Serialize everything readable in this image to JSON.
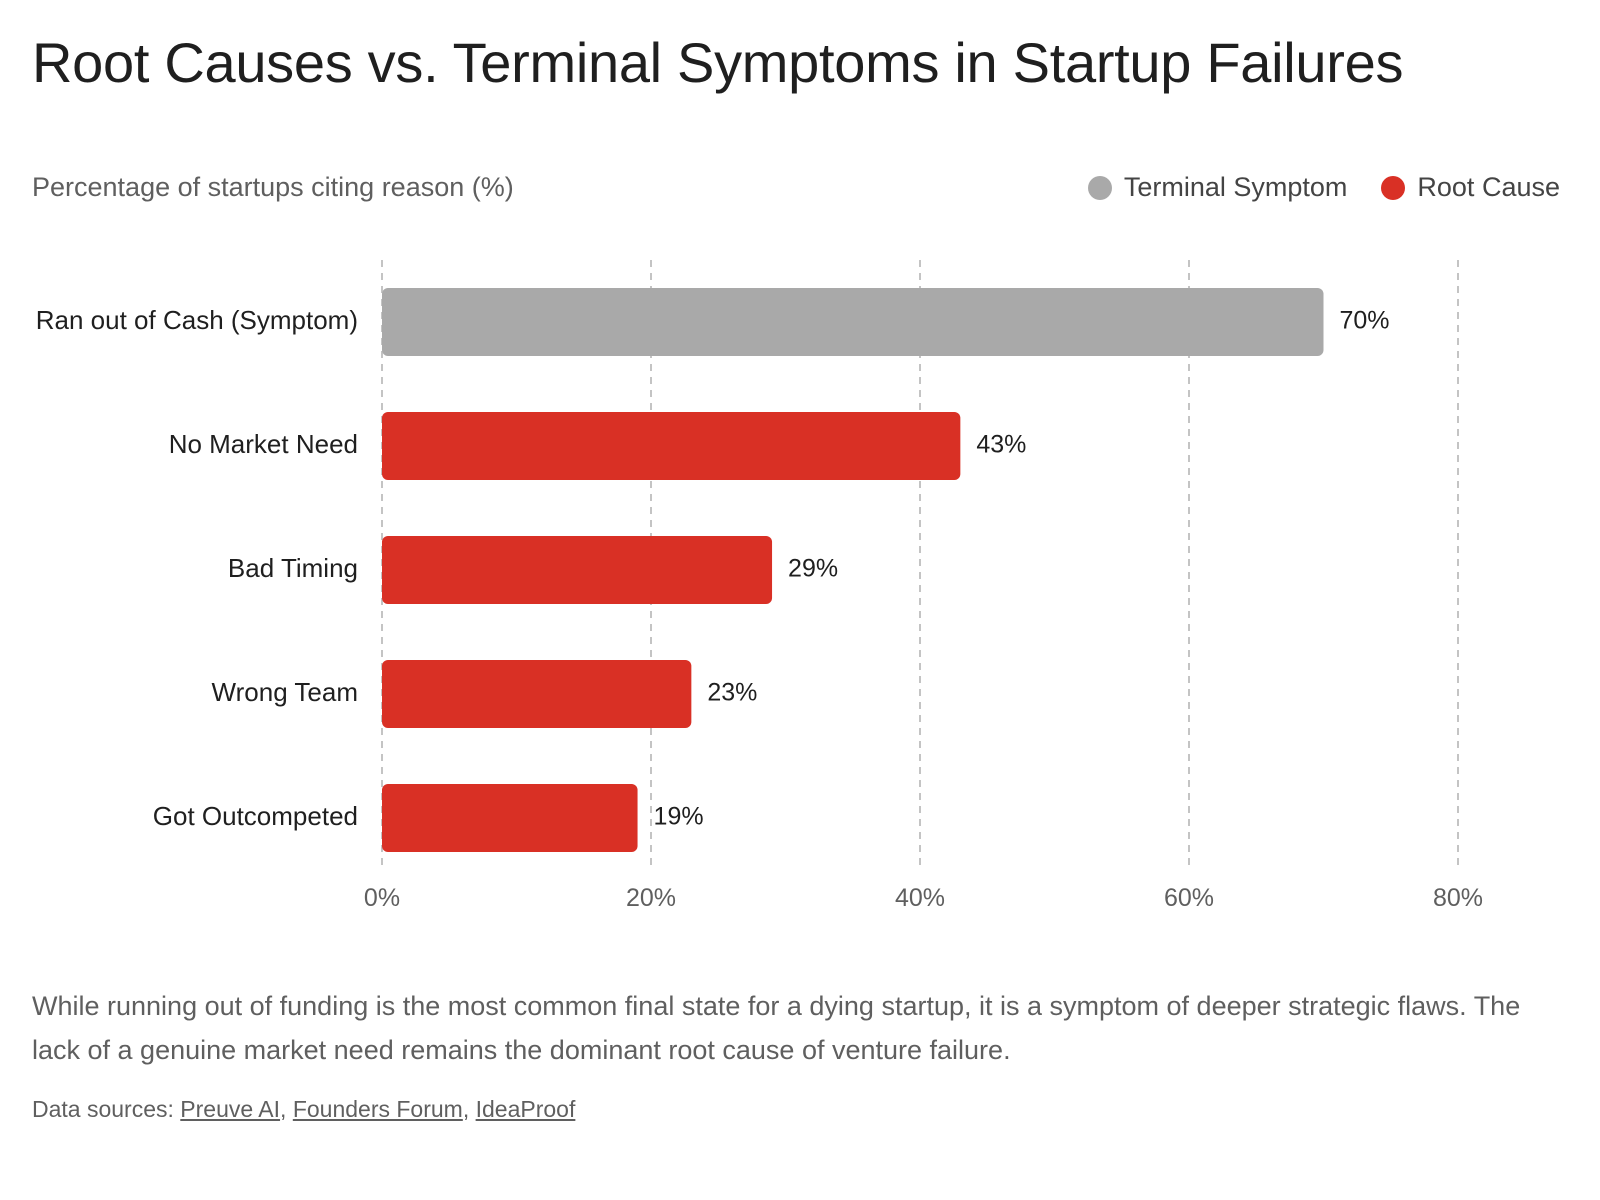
{
  "header": {
    "title": "Root Causes vs. Terminal Symptoms in Startup Failures",
    "subtitle": "Percentage of startups citing reason (%)"
  },
  "legend": {
    "items": [
      {
        "label": "Terminal Symptom",
        "color": "#a9a9a9"
      },
      {
        "label": "Root Cause",
        "color": "#d93025"
      }
    ]
  },
  "chart_data": {
    "type": "bar",
    "orientation": "horizontal",
    "categories": [
      "Ran out of Cash (Symptom)",
      "No Market Need",
      "Bad Timing",
      "Wrong Team",
      "Got Outcompeted"
    ],
    "values": [
      70,
      43,
      29,
      23,
      19
    ],
    "value_labels": [
      "70%",
      "43%",
      "29%",
      "23%",
      "19%"
    ],
    "category_types": [
      "Terminal Symptom",
      "Root Cause",
      "Root Cause",
      "Root Cause",
      "Root Cause"
    ],
    "colors": [
      "#a9a9a9",
      "#d93025",
      "#d93025",
      "#d93025",
      "#d93025"
    ],
    "xlim": [
      0,
      80
    ],
    "xticks": [
      0,
      20,
      40,
      60,
      80
    ],
    "xtick_labels": [
      "0%",
      "20%",
      "40%",
      "60%",
      "80%"
    ],
    "grid": "vertical-dashed",
    "legend_position": "top-right"
  },
  "footer": {
    "description": "While running out of funding is the most common final state for a dying startup, it is a symptom of deeper strategic flaws. The lack of a genuine market need remains the dominant root cause of venture failure.",
    "sources_prefix": "Data sources:",
    "sources": [
      "Preuve AI",
      "Founders Forum",
      "IdeaProof"
    ]
  }
}
